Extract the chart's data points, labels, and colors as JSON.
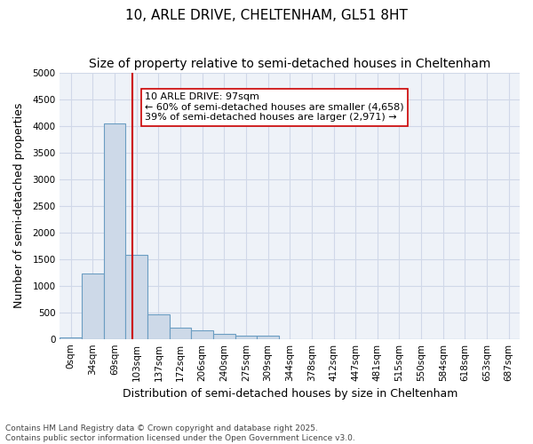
{
  "title": "10, ARLE DRIVE, CHELTENHAM, GL51 8HT",
  "subtitle": "Size of property relative to semi-detached houses in Cheltenham",
  "xlabel": "Distribution of semi-detached houses by size in Cheltenham",
  "ylabel": "Number of semi-detached properties",
  "bin_labels": [
    "0sqm",
    "34sqm",
    "69sqm",
    "103sqm",
    "137sqm",
    "172sqm",
    "206sqm",
    "240sqm",
    "275sqm",
    "309sqm",
    "344sqm",
    "378sqm",
    "412sqm",
    "447sqm",
    "481sqm",
    "515sqm",
    "550sqm",
    "584sqm",
    "618sqm",
    "653sqm",
    "687sqm"
  ],
  "bar_values": [
    30,
    1220,
    4050,
    1580,
    460,
    205,
    155,
    90,
    65,
    55,
    0,
    0,
    0,
    0,
    0,
    0,
    0,
    0,
    0,
    0,
    0
  ],
  "bar_color": "#cdd9e8",
  "bar_edge_color": "#6b9dc2",
  "bar_edge_width": 0.8,
  "vline_x": 2.8,
  "vline_color": "#cc0000",
  "annotation_text": "10 ARLE DRIVE: 97sqm\n← 60% of semi-detached houses are smaller (4,658)\n39% of semi-detached houses are larger (2,971) →",
  "annotation_box_color": "white",
  "annotation_box_edge_color": "#cc0000",
  "ylim": [
    0,
    5000
  ],
  "yticks": [
    0,
    500,
    1000,
    1500,
    2000,
    2500,
    3000,
    3500,
    4000,
    4500,
    5000
  ],
  "grid_color": "#d0d8e8",
  "bg_color": "#eef2f8",
  "footnote": "Contains HM Land Registry data © Crown copyright and database right 2025.\nContains public sector information licensed under the Open Government Licence v3.0.",
  "title_fontsize": 11,
  "subtitle_fontsize": 10,
  "axis_label_fontsize": 9,
  "tick_fontsize": 7.5,
  "annotation_fontsize": 8
}
